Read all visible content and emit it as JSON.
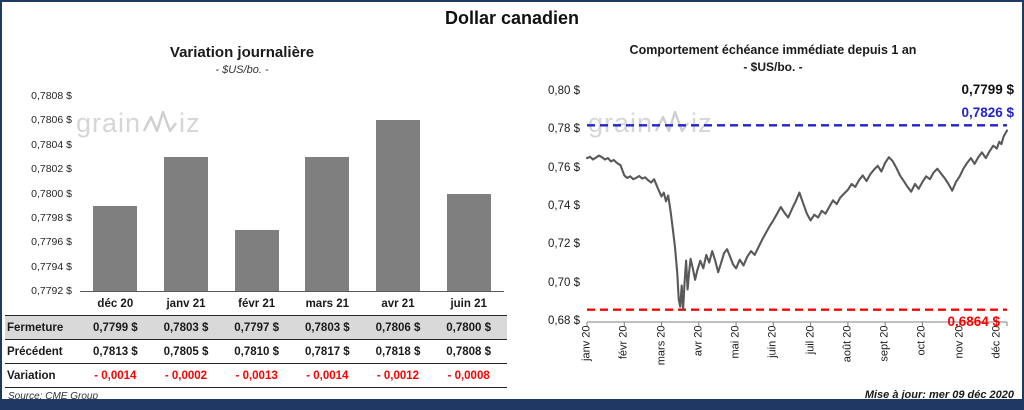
{
  "page": {
    "title": "Dollar canadien",
    "source": "Source: CME Group",
    "updated": "Mise à jour: mer 09 déc 2020",
    "watermark_prefix": "grain",
    "watermark_suffix": "iz"
  },
  "colors": {
    "navy": "#1F3864",
    "bar": "#7F7F7F",
    "line": "#595959",
    "blue": "#2222CC",
    "red": "#FF0000",
    "row_gray": "#D9D9D9"
  },
  "chart_data": [
    {
      "type": "bar",
      "title": "Variation journalière",
      "subtitle": "- $US/bo. -",
      "categories": [
        "déc 20",
        "janv 21",
        "févr 21",
        "mars 21",
        "avr 21",
        "juin 21"
      ],
      "values": [
        0.7799,
        0.7803,
        0.7797,
        0.7803,
        0.7806,
        0.78
      ],
      "ylim": [
        0.7792,
        0.7808
      ],
      "ytick_step": 0.0002,
      "ytick_labels": [
        "0,7808 $",
        "0,7806 $",
        "0,7804 $",
        "0,7802 $",
        "0,7800 $",
        "0,7798 $",
        "0,7796 $",
        "0,7794 $",
        "0,7792 $"
      ],
      "grid": false,
      "table": {
        "rows": [
          {
            "label": "Fermeture",
            "values": [
              "0,7799  $",
              "0,7803  $",
              "0,7797  $",
              "0,7803  $",
              "0,7806  $",
              "0,7800  $"
            ]
          },
          {
            "label": "Précédent",
            "values": [
              "0,7813  $",
              "0,7805  $",
              "0,7810  $",
              "0,7817  $",
              "0,7818  $",
              "0,7808  $"
            ]
          },
          {
            "label": "Variation",
            "values": [
              "- 0,0014",
              "- 0,0002",
              "- 0,0013",
              "- 0,0014",
              "- 0,0012",
              "- 0,0008"
            ],
            "value_color": "#FF0000"
          }
        ]
      }
    },
    {
      "type": "line",
      "title": "Comportement échéance immédiate depuis 1 an",
      "subtitle": "- $US/bo. -",
      "x_labels": [
        "janv 20",
        "févr 20",
        "mars 20",
        "avr 20",
        "mai 20",
        "juin 20",
        "juil 20",
        "août 20",
        "sept 20",
        "oct 20",
        "nov 20",
        "déc 20"
      ],
      "x_max": 11.27,
      "ylim": [
        0.68,
        0.8
      ],
      "ytick_labels": [
        "0,80 $",
        "0,78 $",
        "0,76 $",
        "0,74 $",
        "0,72 $",
        "0,70 $",
        "0,68 $"
      ],
      "grid": false,
      "last_value": 0.7799,
      "last_label": "0,7799 $",
      "high_line": {
        "value": 0.7826,
        "label": "0,7826 $"
      },
      "low_line": {
        "value": 0.6864,
        "label": "0,6864 $"
      },
      "points": [
        [
          0.0,
          0.7655
        ],
        [
          0.08,
          0.7662
        ],
        [
          0.16,
          0.7648
        ],
        [
          0.24,
          0.7658
        ],
        [
          0.32,
          0.7668
        ],
        [
          0.4,
          0.766
        ],
        [
          0.48,
          0.7648
        ],
        [
          0.56,
          0.7655
        ],
        [
          0.64,
          0.7638
        ],
        [
          0.72,
          0.7645
        ],
        [
          0.8,
          0.763
        ],
        [
          0.9,
          0.7618
        ],
        [
          1.0,
          0.7565
        ],
        [
          1.08,
          0.7552
        ],
        [
          1.16,
          0.756
        ],
        [
          1.24,
          0.7545
        ],
        [
          1.32,
          0.7552
        ],
        [
          1.4,
          0.7562
        ],
        [
          1.48,
          0.7548
        ],
        [
          1.56,
          0.7555
        ],
        [
          1.64,
          0.754
        ],
        [
          1.72,
          0.7528
        ],
        [
          1.8,
          0.7545
        ],
        [
          1.9,
          0.7498
        ],
        [
          2.0,
          0.7455
        ],
        [
          2.06,
          0.7475
        ],
        [
          2.12,
          0.743
        ],
        [
          2.18,
          0.746
        ],
        [
          2.24,
          0.738
        ],
        [
          2.3,
          0.729
        ],
        [
          2.36,
          0.719
        ],
        [
          2.42,
          0.706
        ],
        [
          2.46,
          0.692
        ],
        [
          2.5,
          0.688
        ],
        [
          2.54,
          0.699
        ],
        [
          2.58,
          0.6864
        ],
        [
          2.62,
          0.701
        ],
        [
          2.66,
          0.712
        ],
        [
          2.7,
          0.697
        ],
        [
          2.74,
          0.706
        ],
        [
          2.78,
          0.713
        ],
        [
          2.84,
          0.708
        ],
        [
          2.9,
          0.702
        ],
        [
          2.96,
          0.707
        ],
        [
          3.04,
          0.712
        ],
        [
          3.12,
          0.708
        ],
        [
          3.2,
          0.715
        ],
        [
          3.28,
          0.711
        ],
        [
          3.36,
          0.717
        ],
        [
          3.44,
          0.712
        ],
        [
          3.52,
          0.706
        ],
        [
          3.6,
          0.711
        ],
        [
          3.68,
          0.716
        ],
        [
          3.76,
          0.718
        ],
        [
          3.84,
          0.714
        ],
        [
          3.92,
          0.71
        ],
        [
          4.0,
          0.708
        ],
        [
          4.1,
          0.7125
        ],
        [
          4.2,
          0.7095
        ],
        [
          4.3,
          0.714
        ],
        [
          4.4,
          0.717
        ],
        [
          4.5,
          0.715
        ],
        [
          4.6,
          0.719
        ],
        [
          4.7,
          0.723
        ],
        [
          4.8,
          0.7265
        ],
        [
          4.9,
          0.73
        ],
        [
          5.0,
          0.733
        ],
        [
          5.1,
          0.7365
        ],
        [
          5.2,
          0.74
        ],
        [
          5.3,
          0.737
        ],
        [
          5.4,
          0.7345
        ],
        [
          5.5,
          0.739
        ],
        [
          5.6,
          0.743
        ],
        [
          5.7,
          0.7475
        ],
        [
          5.8,
          0.742
        ],
        [
          5.9,
          0.7365
        ],
        [
          6.0,
          0.733
        ],
        [
          6.1,
          0.736
        ],
        [
          6.2,
          0.7345
        ],
        [
          6.3,
          0.738
        ],
        [
          6.4,
          0.7365
        ],
        [
          6.5,
          0.74
        ],
        [
          6.6,
          0.7435
        ],
        [
          6.7,
          0.7415
        ],
        [
          6.8,
          0.745
        ],
        [
          6.9,
          0.747
        ],
        [
          7.0,
          0.749
        ],
        [
          7.1,
          0.752
        ],
        [
          7.2,
          0.7505
        ],
        [
          7.3,
          0.754
        ],
        [
          7.4,
          0.7565
        ],
        [
          7.5,
          0.7535
        ],
        [
          7.6,
          0.757
        ],
        [
          7.7,
          0.7595
        ],
        [
          7.8,
          0.7615
        ],
        [
          7.9,
          0.7585
        ],
        [
          8.0,
          0.763
        ],
        [
          8.1,
          0.766
        ],
        [
          8.2,
          0.764
        ],
        [
          8.3,
          0.7605
        ],
        [
          8.4,
          0.7565
        ],
        [
          8.5,
          0.7535
        ],
        [
          8.6,
          0.7505
        ],
        [
          8.7,
          0.748
        ],
        [
          8.8,
          0.752
        ],
        [
          8.9,
          0.7495
        ],
        [
          9.0,
          0.753
        ],
        [
          9.1,
          0.756
        ],
        [
          9.2,
          0.7545
        ],
        [
          9.3,
          0.758
        ],
        [
          9.4,
          0.76
        ],
        [
          9.5,
          0.7575
        ],
        [
          9.6,
          0.755
        ],
        [
          9.7,
          0.752
        ],
        [
          9.8,
          0.7485
        ],
        [
          9.9,
          0.753
        ],
        [
          10.0,
          0.756
        ],
        [
          10.1,
          0.76
        ],
        [
          10.2,
          0.763
        ],
        [
          10.3,
          0.7655
        ],
        [
          10.4,
          0.7625
        ],
        [
          10.5,
          0.766
        ],
        [
          10.6,
          0.7685
        ],
        [
          10.7,
          0.7655
        ],
        [
          10.8,
          0.769
        ],
        [
          10.9,
          0.772
        ],
        [
          11.0,
          0.7705
        ],
        [
          11.06,
          0.774
        ],
        [
          11.12,
          0.7728
        ],
        [
          11.18,
          0.7768
        ],
        [
          11.27,
          0.7799
        ]
      ]
    }
  ]
}
